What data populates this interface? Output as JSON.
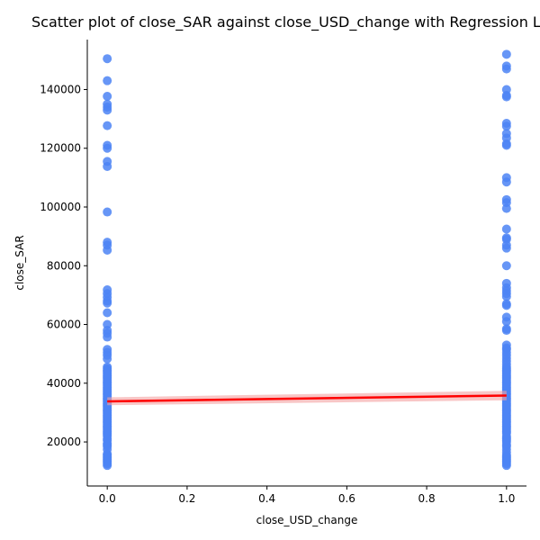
{
  "chart_data": {
    "type": "scatter",
    "title": "Scatter plot of close_SAR against close_USD_change with Regression Line",
    "xlabel": "close_USD_change",
    "ylabel": "close_SAR",
    "xlim": [
      -0.05,
      1.05
    ],
    "ylim": [
      5000,
      157000
    ],
    "grid": false,
    "x_ticks": [
      0.0,
      0.2,
      0.4,
      0.6,
      0.8,
      1.0
    ],
    "x_tick_labels": [
      "0.0",
      "0.2",
      "0.4",
      "0.6",
      "0.8",
      "1.0"
    ],
    "y_ticks": [
      20000,
      40000,
      60000,
      80000,
      100000,
      120000,
      140000
    ],
    "y_tick_labels": [
      "20000",
      "40000",
      "60000",
      "80000",
      "100000",
      "120000",
      "140000"
    ],
    "point_color": "#4c84f4",
    "line_color": "#ff0000",
    "ci_color": "#f4a0a0",
    "series": [
      {
        "x": 0,
        "values": [
          150500,
          143000,
          137700,
          135000,
          134000,
          133000,
          127700,
          121000,
          120000,
          115500,
          113800,
          98300,
          88000,
          87000,
          85300,
          71800,
          70500,
          69300,
          68000,
          67300,
          64000,
          60000,
          58000,
          57000,
          55700,
          51500,
          50500,
          49500,
          48300,
          45500,
          45000,
          44500,
          44000,
          43500,
          43000,
          42500,
          42000,
          41500,
          41000,
          40500,
          40000,
          39500,
          39000,
          38500,
          38000,
          37500,
          37000,
          36500,
          36000,
          35500,
          35000,
          34500,
          34000,
          33500,
          33000,
          32500,
          32000,
          31500,
          31000,
          30500,
          30000,
          29500,
          29000,
          28500,
          28000,
          27500,
          27000,
          26500,
          26000,
          25500,
          25000,
          24500,
          24000,
          23500,
          23000,
          22500,
          22000,
          21000,
          20500,
          19500,
          19000,
          18500,
          17500,
          16000,
          15500,
          15000,
          14500,
          14000,
          13500,
          13000,
          12500,
          12000
        ]
      },
      {
        "x": 1,
        "values": [
          152000,
          148000,
          147000,
          140000,
          138000,
          137500,
          128500,
          127500,
          125000,
          123500,
          121500,
          121000,
          110000,
          108500,
          102500,
          101500,
          99500,
          92500,
          89500,
          89000,
          87000,
          86000,
          80000,
          74000,
          72500,
          71500,
          70500,
          69500,
          67000,
          66500,
          62500,
          61000,
          58500,
          58000,
          53000,
          52000,
          51500,
          50500,
          49500,
          48500,
          47500,
          46500,
          45500,
          45000,
          44500,
          44000,
          43500,
          43000,
          42500,
          42000,
          41500,
          41000,
          40500,
          40000,
          39500,
          39000,
          38500,
          38000,
          37500,
          37000,
          36500,
          36000,
          35500,
          35000,
          34500,
          34000,
          33500,
          33000,
          32500,
          32000,
          31500,
          31000,
          30500,
          30000,
          29500,
          29000,
          28500,
          28000,
          27500,
          27000,
          26500,
          26000,
          25500,
          25000,
          24500,
          24000,
          23500,
          23000,
          22000,
          21500,
          21000,
          20500,
          20000,
          19000,
          18500,
          17500,
          16500,
          15500,
          15000,
          14500,
          14000,
          13500,
          13000,
          12500,
          12000
        ]
      }
    ],
    "regression": {
      "x_start": 0,
      "y_start": 33800,
      "x_end": 1,
      "y_end": 35800,
      "ci_start": [
        32500,
        35200
      ],
      "ci_end": [
        34200,
        37400
      ]
    }
  }
}
